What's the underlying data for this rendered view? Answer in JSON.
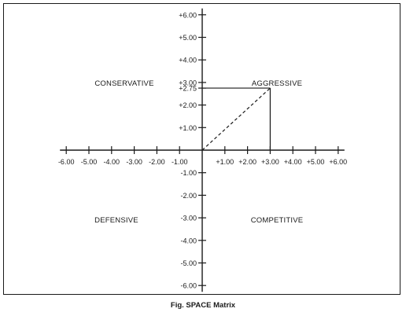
{
  "chart_data": {
    "type": "scatter",
    "x_ticks": [
      -6,
      -5,
      -4,
      -3,
      -2,
      -1,
      1,
      2,
      3,
      4,
      5,
      6
    ],
    "y_ticks": [
      6,
      5,
      4,
      3,
      2.75,
      2,
      1,
      -1,
      -2,
      -3,
      -4,
      -5,
      -6
    ],
    "x_tick_labels": [
      "-6.00",
      "-5.00",
      "-4.00",
      "-3.00",
      "-2.00",
      "-1.00",
      "+1.00",
      "+2.00",
      "+3.00",
      "+4.00",
      "+5.00",
      "+6.00"
    ],
    "y_tick_labels": [
      "+6.00",
      "+5.00",
      "+4.00",
      "+3.00",
      "+2.75",
      "+2.00",
      "+1.00",
      "-1.00",
      "-2.00",
      "-3.00",
      "-4.00",
      "-5.00",
      "-6.00"
    ],
    "xlim": [
      -6,
      6
    ],
    "ylim": [
      -6,
      6
    ],
    "point": {
      "x": 3.0,
      "y": 2.75
    },
    "quadrants": {
      "top_left": "CONSERVATIVE",
      "top_right": "AGGRESSIVE",
      "bottom_left": "DEFENSIVE",
      "bottom_right": "COMPETITIVE"
    }
  },
  "caption": "Fig. SPACE Matrix"
}
